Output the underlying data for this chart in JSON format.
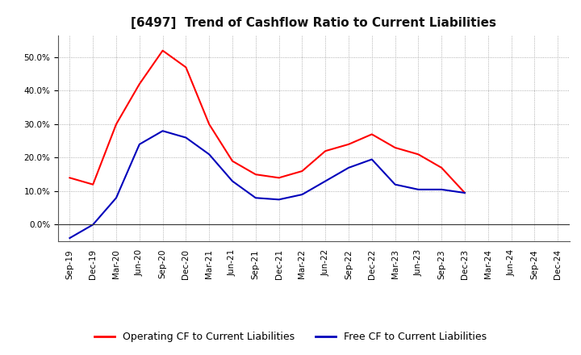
{
  "title": "[6497]  Trend of Cashflow Ratio to Current Liabilities",
  "x_labels": [
    "Sep-19",
    "Dec-19",
    "Mar-20",
    "Jun-20",
    "Sep-20",
    "Dec-20",
    "Mar-21",
    "Jun-21",
    "Sep-21",
    "Dec-21",
    "Mar-22",
    "Jun-22",
    "Sep-22",
    "Dec-22",
    "Mar-23",
    "Jun-23",
    "Sep-23",
    "Dec-23",
    "Mar-24",
    "Jun-24",
    "Sep-24",
    "Dec-24"
  ],
  "operating_cf": [
    0.14,
    0.12,
    0.3,
    0.42,
    0.52,
    0.47,
    0.3,
    0.19,
    0.15,
    0.14,
    0.16,
    0.22,
    0.24,
    0.27,
    0.23,
    0.21,
    0.17,
    0.095,
    null,
    null,
    null,
    null
  ],
  "free_cf": [
    -0.04,
    0.0,
    0.08,
    0.24,
    0.28,
    0.26,
    0.21,
    0.13,
    0.08,
    0.075,
    0.09,
    0.13,
    0.17,
    0.195,
    0.12,
    0.105,
    0.105,
    0.095,
    null,
    null,
    null,
    null
  ],
  "operating_color": "#ff0000",
  "free_color": "#0000bb",
  "ylim": [
    -0.05,
    0.565
  ],
  "yticks": [
    0.0,
    0.1,
    0.2,
    0.3,
    0.4,
    0.5
  ],
  "legend_labels": [
    "Operating CF to Current Liabilities",
    "Free CF to Current Liabilities"
  ],
  "background_color": "#ffffff",
  "grid_color": "#999999",
  "title_fontsize": 11,
  "tick_fontsize": 7.5,
  "legend_fontsize": 9
}
